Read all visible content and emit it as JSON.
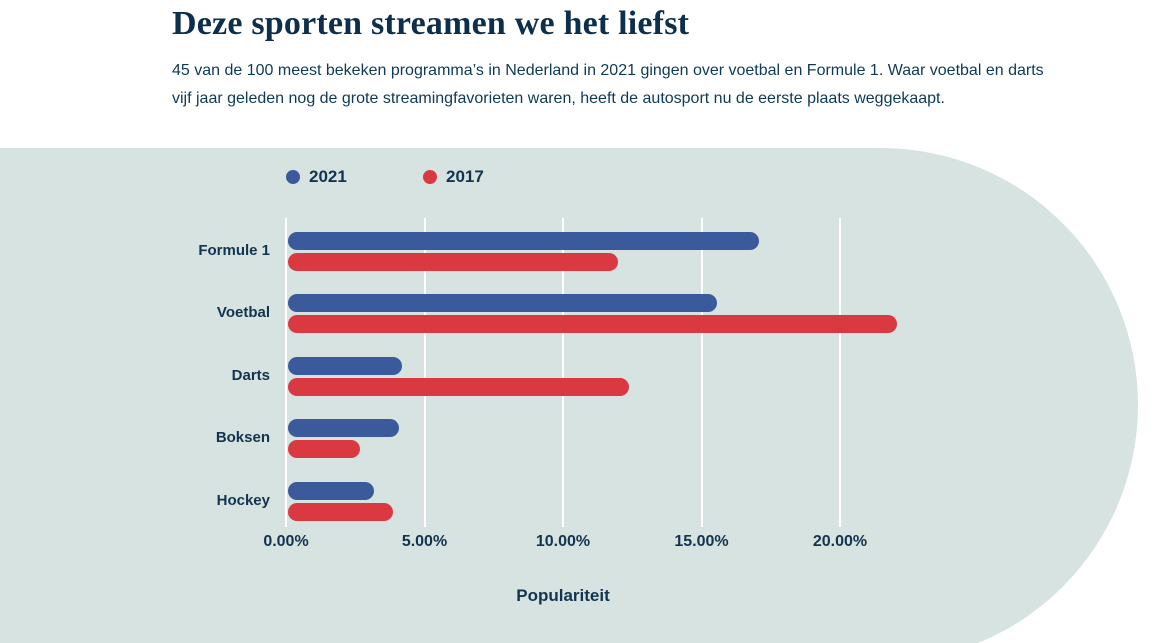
{
  "header": {
    "title": "Deze sporten streamen we het liefst",
    "subtitle": "45 van de 100 meest bekeken programma’s in Nederland in 2021 gingen over voetbal en Formule 1. Waar voetbal en darts vijf jaar geleden nog de grote streamingfavorieten waren, heeft de autosport nu de eerste plaats weggekaapt."
  },
  "chart_data": {
    "type": "bar",
    "orientation": "horizontal",
    "title": "Deze sporten streamen we het liefst",
    "categories": [
      "Formule 1",
      "Voetbal",
      "Darts",
      "Boksen",
      "Hockey"
    ],
    "series": [
      {
        "name": "2021",
        "color": "#3a5a9c",
        "values": [
          17.0,
          15.5,
          4.1,
          4.0,
          3.1
        ]
      },
      {
        "name": "2017",
        "color": "#da3942",
        "values": [
          11.9,
          22.0,
          12.3,
          2.6,
          3.8
        ]
      }
    ],
    "xlabel": "Populariteit",
    "ylabel": "",
    "xlim": [
      0,
      20
    ],
    "x_ticks": [
      {
        "label": "0.00%",
        "value": 0
      },
      {
        "label": "5.00%",
        "value": 5
      },
      {
        "label": "10.00%",
        "value": 10
      },
      {
        "label": "15.00%",
        "value": 15
      },
      {
        "label": "20.00%",
        "value": 20
      }
    ],
    "grid": true,
    "legend_position": "top"
  },
  "colors": {
    "background_shape": "#d6e3e1",
    "page_background": "#ffffff",
    "title_text": "#0d2f4b",
    "body_text": "#0e3a57",
    "label_text": "#13344f",
    "gridline": "#ffffff",
    "series_2021": "#3a5a9c",
    "series_2017": "#da3942"
  }
}
